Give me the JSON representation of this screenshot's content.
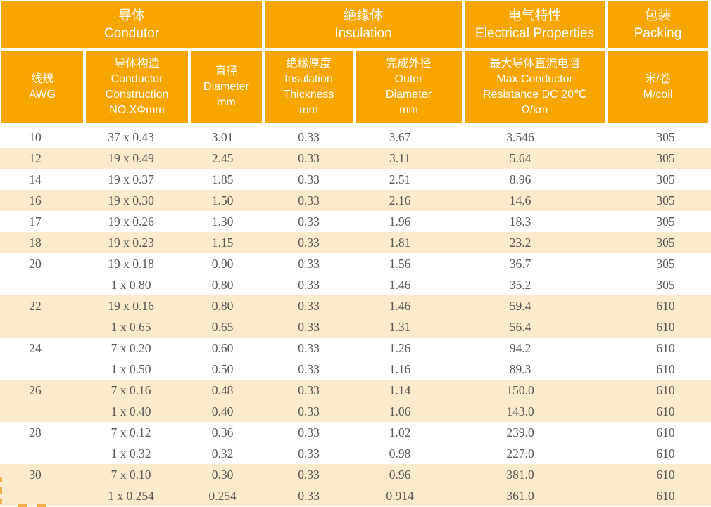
{
  "colors": {
    "header_orange": "#F7A501",
    "row_beige": "#FBEACB",
    "header_text": "#FFFFFF",
    "data_text": "#595857",
    "dash_orange": "#F3AE4B"
  },
  "header": {
    "groups": [
      {
        "zh": "导体",
        "en": "Condutor",
        "span": 3
      },
      {
        "zh": "绝缘体",
        "en": "Insulation",
        "span": 2
      },
      {
        "zh": "电气特性",
        "en": "Electrical Properties",
        "span": 1
      },
      {
        "zh": "包装",
        "en": "Packing",
        "span": 1
      }
    ],
    "columns": [
      {
        "key": "awg",
        "lines": [
          "线规",
          "AWG"
        ]
      },
      {
        "key": "construction",
        "lines": [
          "导体构造",
          "Conductor",
          "Construction",
          "NO.XΦmm"
        ]
      },
      {
        "key": "diameter",
        "lines": [
          "直径",
          "Diameter",
          "mm"
        ]
      },
      {
        "key": "insulation_thickness",
        "lines": [
          "绝缘厚度",
          "Insulation",
          "Thickness",
          "mm"
        ]
      },
      {
        "key": "outer_diameter",
        "lines": [
          "完成外径",
          "Outer",
          "Diameter",
          "mm"
        ]
      },
      {
        "key": "resistance",
        "lines": [
          "最大导体直流电阻",
          "Max.Conductor",
          "Resistance DC 20℃",
          "Ω/km"
        ]
      },
      {
        "key": "packing",
        "lines": [
          "米/卷",
          "M/coil"
        ]
      }
    ]
  },
  "rows": [
    {
      "awg": "10",
      "construction": "37 x 0.43",
      "diameter": "3.01",
      "insulation_thickness": "0.33",
      "outer_diameter": "3.67",
      "resistance": "3.546",
      "packing": "305",
      "shaded": false
    },
    {
      "awg": "12",
      "construction": "19 x 0.49",
      "diameter": "2.45",
      "insulation_thickness": "0.33",
      "outer_diameter": "3.11",
      "resistance": "5.64",
      "packing": "305",
      "shaded": true
    },
    {
      "awg": "14",
      "construction": "19 x 0.37",
      "diameter": "1.85",
      "insulation_thickness": "0.33",
      "outer_diameter": "2.51",
      "resistance": "8.96",
      "packing": "305",
      "shaded": false
    },
    {
      "awg": "16",
      "construction": "19 x 0.30",
      "diameter": "1.50",
      "insulation_thickness": "0.33",
      "outer_diameter": "2.16",
      "resistance": "14.6",
      "packing": "305",
      "shaded": true
    },
    {
      "awg": "17",
      "construction": "19 x 0.26",
      "diameter": "1.30",
      "insulation_thickness": "0.33",
      "outer_diameter": "1.96",
      "resistance": "18.3",
      "packing": "305",
      "shaded": false
    },
    {
      "awg": "18",
      "construction": "19 x 0.23",
      "diameter": "1.15",
      "insulation_thickness": "0.33",
      "outer_diameter": "1.81",
      "resistance": "23.2",
      "packing": "305",
      "shaded": true
    },
    {
      "awg": "20",
      "construction": "19 x 0.18",
      "diameter": "0.90",
      "insulation_thickness": "0.33",
      "outer_diameter": "1.56",
      "resistance": "36.7",
      "packing": "305",
      "shaded": false
    },
    {
      "awg": "",
      "construction": "1 x 0.80",
      "diameter": "0.80",
      "insulation_thickness": "0.33",
      "outer_diameter": "1.46",
      "resistance": "35.2",
      "packing": "305",
      "shaded": false
    },
    {
      "awg": "22",
      "construction": "19 x 0.16",
      "diameter": "0.80",
      "insulation_thickness": "0.33",
      "outer_diameter": "1.46",
      "resistance": "59.4",
      "packing": "610",
      "shaded": true
    },
    {
      "awg": "",
      "construction": "1 x 0.65",
      "diameter": "0.65",
      "insulation_thickness": "0.33",
      "outer_diameter": "1.31",
      "resistance": "56.4",
      "packing": "610",
      "shaded": true
    },
    {
      "awg": "24",
      "construction": "7 x 0.20",
      "diameter": "0.60",
      "insulation_thickness": "0.33",
      "outer_diameter": "1.26",
      "resistance": "94.2",
      "packing": "610",
      "shaded": false
    },
    {
      "awg": "",
      "construction": "1 x 0.50",
      "diameter": "0.50",
      "insulation_thickness": "0.33",
      "outer_diameter": "1.16",
      "resistance": "89.3",
      "packing": "610",
      "shaded": false
    },
    {
      "awg": "26",
      "construction": "7 x 0.16",
      "diameter": "0.48",
      "insulation_thickness": "0.33",
      "outer_diameter": "1.14",
      "resistance": "150.0",
      "packing": "610",
      "shaded": true
    },
    {
      "awg": "",
      "construction": "1 x 0.40",
      "diameter": "0.40",
      "insulation_thickness": "0.33",
      "outer_diameter": "1.06",
      "resistance": "143.0",
      "packing": "610",
      "shaded": true
    },
    {
      "awg": "28",
      "construction": "7 x 0.12",
      "diameter": "0.36",
      "insulation_thickness": "0.33",
      "outer_diameter": "1.02",
      "resistance": "239.0",
      "packing": "610",
      "shaded": false
    },
    {
      "awg": "",
      "construction": "1 x 0.32",
      "diameter": "0.32",
      "insulation_thickness": "0.33",
      "outer_diameter": "0.98",
      "resistance": "227.0",
      "packing": "610",
      "shaded": false
    },
    {
      "awg": "30",
      "construction": "7 x 0.10",
      "diameter": "0.30",
      "insulation_thickness": "0.33",
      "outer_diameter": "0.96",
      "resistance": "381.0",
      "packing": "610",
      "shaded": true
    },
    {
      "awg": "",
      "construction": "1 x 0.254",
      "diameter": "0.254",
      "insulation_thickness": "0.33",
      "outer_diameter": "0.914",
      "resistance": "361.0",
      "packing": "610",
      "shaded": true
    }
  ]
}
